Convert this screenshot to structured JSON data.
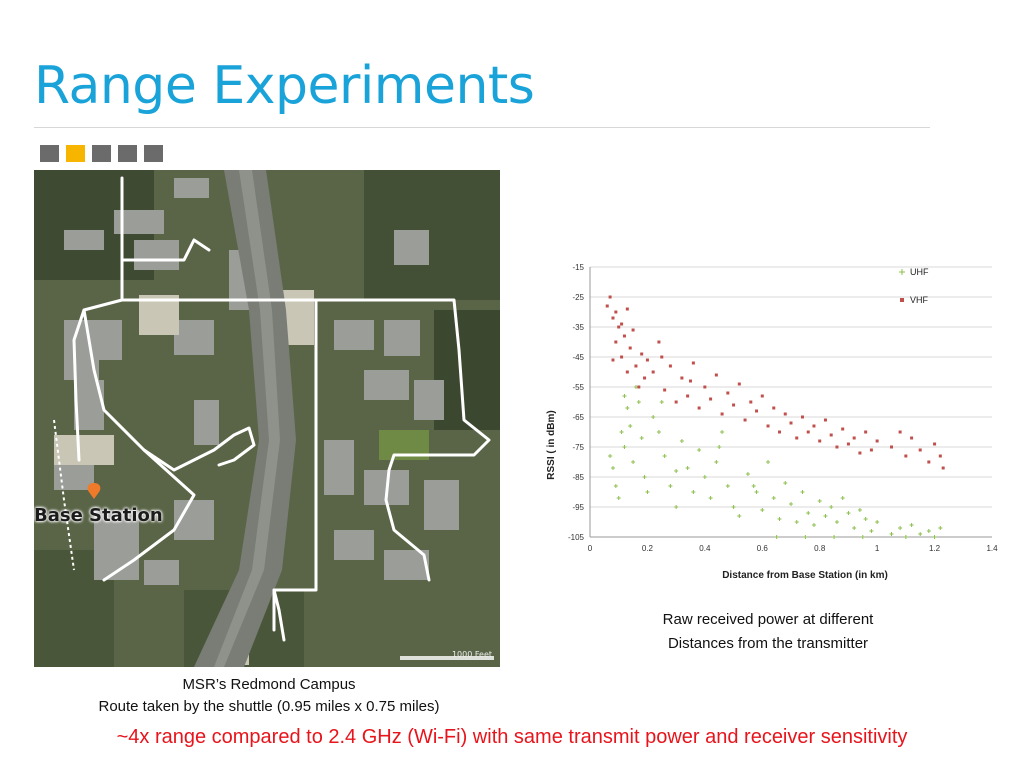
{
  "slide": {
    "title": "Range Experiments",
    "nav_squares": [
      {
        "active": false
      },
      {
        "active": true
      },
      {
        "active": false
      },
      {
        "active": false
      },
      {
        "active": false
      }
    ],
    "accent_color": "#1aa3d9",
    "highlight_color": "#f7b500",
    "note_color": "#e8141b"
  },
  "map": {
    "base_station_label": "Base Station",
    "scale_label": "1000 Feet",
    "caption_line1": "MSR’s Redmond Campus",
    "caption_line2": "Route taken by the shuttle (0.95 miles x 0.75 miles)"
  },
  "chart_caption": {
    "line1": "Raw received power at different",
    "line2": "Distances from the transmitter"
  },
  "bottom_note": "~4x range compared to 2.4 GHz (Wi-Fi) with same transmit power and receiver sensitivity",
  "chart_data": {
    "type": "scatter",
    "xlabel": "Distance from Base Station (in km)",
    "ylabel": "RSSI ( in dBm)",
    "xlim": [
      0,
      1.4
    ],
    "ylim": [
      -105,
      -15
    ],
    "xticks": [
      0,
      0.2,
      0.4,
      0.6,
      0.8,
      1,
      1.2,
      1.4
    ],
    "yticks": [
      -15,
      -25,
      -35,
      -45,
      -55,
      -65,
      -75,
      -85,
      -95,
      -105
    ],
    "grid": true,
    "legend_position": "top-right",
    "series": [
      {
        "name": "UHF",
        "marker": "+",
        "color": "#8cbf4e",
        "points": [
          [
            0.07,
            -78
          ],
          [
            0.08,
            -82
          ],
          [
            0.09,
            -88
          ],
          [
            0.1,
            -92
          ],
          [
            0.11,
            -70
          ],
          [
            0.12,
            -75
          ],
          [
            0.13,
            -62
          ],
          [
            0.14,
            -68
          ],
          [
            0.15,
            -80
          ],
          [
            0.16,
            -55
          ],
          [
            0.17,
            -60
          ],
          [
            0.18,
            -72
          ],
          [
            0.19,
            -85
          ],
          [
            0.2,
            -90
          ],
          [
            0.22,
            -65
          ],
          [
            0.24,
            -70
          ],
          [
            0.26,
            -78
          ],
          [
            0.28,
            -88
          ],
          [
            0.3,
            -95
          ],
          [
            0.32,
            -73
          ],
          [
            0.34,
            -82
          ],
          [
            0.36,
            -90
          ],
          [
            0.38,
            -76
          ],
          [
            0.4,
            -85
          ],
          [
            0.42,
            -92
          ],
          [
            0.44,
            -80
          ],
          [
            0.46,
            -70
          ],
          [
            0.48,
            -88
          ],
          [
            0.5,
            -95
          ],
          [
            0.52,
            -98
          ],
          [
            0.55,
            -84
          ],
          [
            0.58,
            -90
          ],
          [
            0.6,
            -96
          ],
          [
            0.62,
            -80
          ],
          [
            0.64,
            -92
          ],
          [
            0.66,
            -99
          ],
          [
            0.68,
            -87
          ],
          [
            0.7,
            -94
          ],
          [
            0.72,
            -100
          ],
          [
            0.74,
            -90
          ],
          [
            0.76,
            -97
          ],
          [
            0.78,
            -101
          ],
          [
            0.8,
            -93
          ],
          [
            0.82,
            -98
          ],
          [
            0.84,
            -95
          ],
          [
            0.86,
            -100
          ],
          [
            0.88,
            -92
          ],
          [
            0.9,
            -97
          ],
          [
            0.92,
            -102
          ],
          [
            0.94,
            -96
          ],
          [
            0.96,
            -99
          ],
          [
            0.98,
            -103
          ],
          [
            1.0,
            -100
          ],
          [
            1.05,
            -104
          ],
          [
            1.08,
            -102
          ],
          [
            1.1,
            -105
          ],
          [
            1.12,
            -101
          ],
          [
            1.15,
            -104
          ],
          [
            1.18,
            -103
          ],
          [
            1.2,
            -105
          ],
          [
            1.22,
            -102
          ],
          [
            0.25,
            -60
          ],
          [
            0.12,
            -58
          ],
          [
            0.3,
            -83
          ],
          [
            0.45,
            -75
          ],
          [
            0.57,
            -88
          ],
          [
            0.65,
            -105
          ],
          [
            0.75,
            -105
          ],
          [
            0.85,
            -105
          ],
          [
            0.95,
            -105
          ]
        ]
      },
      {
        "name": "VHF",
        "marker": "square",
        "color": "#c0504d",
        "points": [
          [
            0.06,
            -28
          ],
          [
            0.07,
            -25
          ],
          [
            0.08,
            -32
          ],
          [
            0.09,
            -40
          ],
          [
            0.1,
            -35
          ],
          [
            0.11,
            -45
          ],
          [
            0.12,
            -38
          ],
          [
            0.13,
            -50
          ],
          [
            0.14,
            -42
          ],
          [
            0.15,
            -36
          ],
          [
            0.16,
            -48
          ],
          [
            0.17,
            -55
          ],
          [
            0.18,
            -44
          ],
          [
            0.19,
            -52
          ],
          [
            0.2,
            -46
          ],
          [
            0.22,
            -50
          ],
          [
            0.24,
            -40
          ],
          [
            0.26,
            -56
          ],
          [
            0.28,
            -48
          ],
          [
            0.3,
            -60
          ],
          [
            0.32,
            -52
          ],
          [
            0.34,
            -58
          ],
          [
            0.36,
            -47
          ],
          [
            0.38,
            -62
          ],
          [
            0.4,
            -55
          ],
          [
            0.42,
            -59
          ],
          [
            0.44,
            -51
          ],
          [
            0.46,
            -64
          ],
          [
            0.48,
            -57
          ],
          [
            0.5,
            -61
          ],
          [
            0.52,
            -54
          ],
          [
            0.54,
            -66
          ],
          [
            0.56,
            -60
          ],
          [
            0.58,
            -63
          ],
          [
            0.6,
            -58
          ],
          [
            0.62,
            -68
          ],
          [
            0.64,
            -62
          ],
          [
            0.66,
            -70
          ],
          [
            0.68,
            -64
          ],
          [
            0.7,
            -67
          ],
          [
            0.72,
            -72
          ],
          [
            0.74,
            -65
          ],
          [
            0.76,
            -70
          ],
          [
            0.78,
            -68
          ],
          [
            0.8,
            -73
          ],
          [
            0.82,
            -66
          ],
          [
            0.84,
            -71
          ],
          [
            0.86,
            -75
          ],
          [
            0.88,
            -69
          ],
          [
            0.9,
            -74
          ],
          [
            0.92,
            -72
          ],
          [
            0.94,
            -77
          ],
          [
            0.96,
            -70
          ],
          [
            0.98,
            -76
          ],
          [
            1.0,
            -73
          ],
          [
            1.05,
            -75
          ],
          [
            1.08,
            -70
          ],
          [
            1.1,
            -78
          ],
          [
            1.12,
            -72
          ],
          [
            1.15,
            -76
          ],
          [
            1.18,
            -80
          ],
          [
            1.2,
            -74
          ],
          [
            1.22,
            -78
          ],
          [
            1.23,
            -82
          ],
          [
            0.08,
            -46
          ],
          [
            0.09,
            -30
          ],
          [
            0.11,
            -34
          ],
          [
            0.13,
            -29
          ],
          [
            0.25,
            -45
          ],
          [
            0.35,
            -53
          ]
        ]
      }
    ]
  }
}
